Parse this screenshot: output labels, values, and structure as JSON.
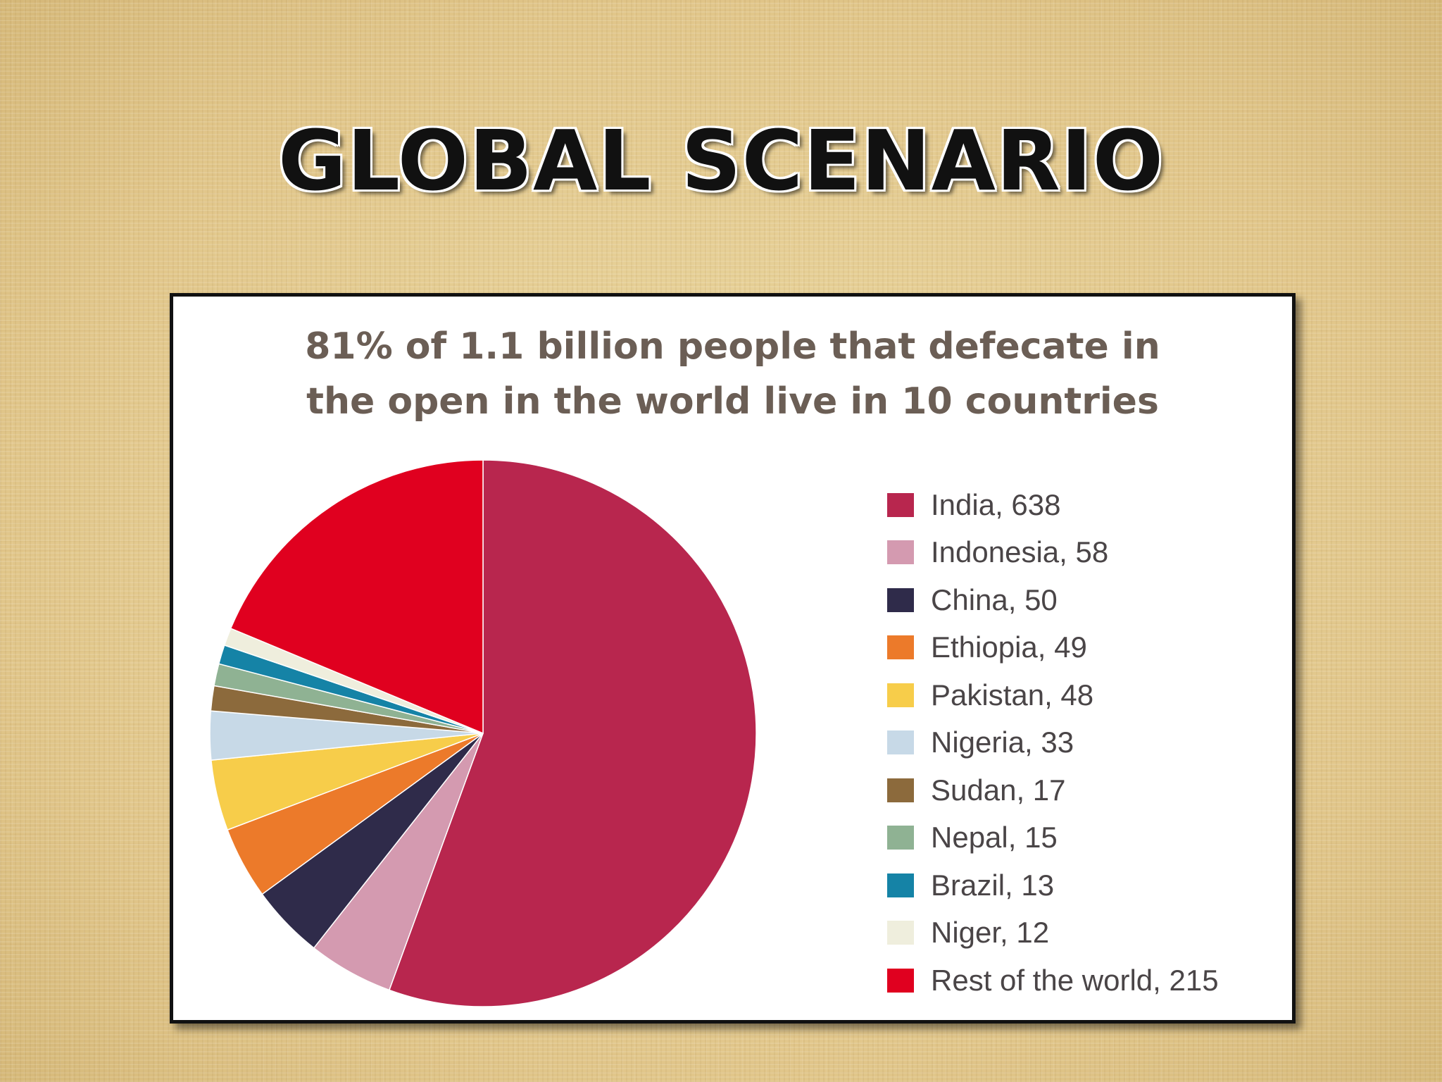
{
  "slide": {
    "title": "GLOBAL SCENARIO"
  },
  "chart_data": {
    "type": "pie",
    "title_lines": [
      "81% of 1.1 billion people that defecate in",
      "the open in the world live in 10 countries"
    ],
    "slices": [
      {
        "label": "India, 638",
        "value": 638,
        "color": "#b8264e"
      },
      {
        "label": "Indonesia, 58",
        "value": 58,
        "color": "#d49ab0"
      },
      {
        "label": "China, 50",
        "value": 50,
        "color": "#2f2b4a"
      },
      {
        "label": "Ethiopia, 49",
        "value": 49,
        "color": "#ec7a2a"
      },
      {
        "label": "Pakistan, 48",
        "value": 48,
        "color": "#f7cd4a"
      },
      {
        "label": "Nigeria, 33",
        "value": 33,
        "color": "#c7d9e7"
      },
      {
        "label": "Sudan, 17",
        "value": 17,
        "color": "#8c6a3c"
      },
      {
        "label": "Nepal, 15",
        "value": 15,
        "color": "#8fb293"
      },
      {
        "label": "Brazil, 13",
        "value": 13,
        "color": "#1583a6"
      },
      {
        "label": "Niger, 12",
        "value": 12,
        "color": "#efeedd"
      },
      {
        "label": "Rest of the world, 215",
        "value": 215,
        "color": "#e0001f"
      }
    ],
    "start_angle": "12 o'clock",
    "direction": "clockwise",
    "legend_position": "right"
  }
}
